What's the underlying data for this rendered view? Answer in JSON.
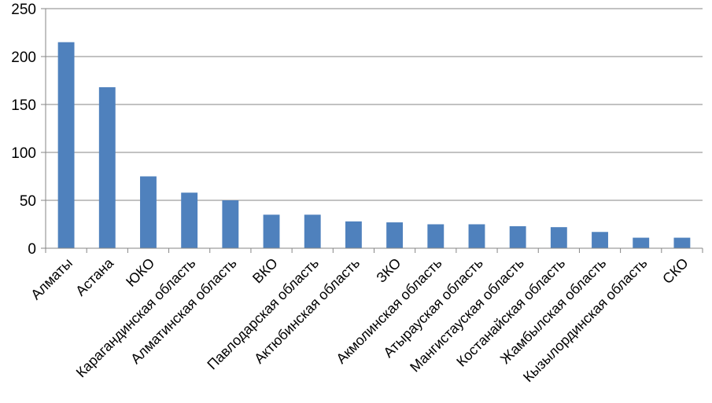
{
  "chart_data": {
    "type": "bar",
    "categories": [
      "Алматы",
      "Астана",
      "ЮКО",
      "Карагандинская область",
      "Алматинская область",
      "ВКО",
      "Павлодарская область",
      "Актюбинская область",
      "ЗКО",
      "Акмолинская область",
      "Атырауская область",
      "Мангистауская область",
      "Костанайская область",
      "Жамбылская область",
      "Кызылординская область",
      "СКО"
    ],
    "values": [
      215,
      168,
      75,
      58,
      50,
      35,
      35,
      28,
      27,
      25,
      25,
      23,
      22,
      17,
      11,
      11
    ],
    "ylim": [
      0,
      250
    ],
    "yticks": [
      "0",
      "50",
      "100",
      "150",
      "200",
      "250"
    ],
    "grid": true,
    "legend": "none",
    "colors": {
      "bar": "#4f81bd",
      "grid": "#868686",
      "axis": "#868686"
    }
  }
}
